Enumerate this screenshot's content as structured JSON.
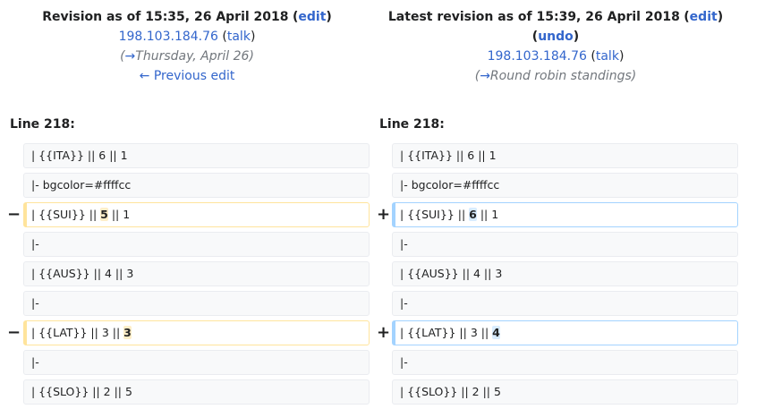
{
  "left_header": {
    "title_prefix": "Revision as of 15:35, 26 April 2018",
    "edit_label": "edit",
    "user": "198.103.184.76",
    "talk": "talk",
    "summary_arrow": "→",
    "summary": "Thursday, April 26",
    "prev_edit": "← Previous edit"
  },
  "right_header": {
    "title_prefix": "Latest revision as of 15:39, 26 April 2018",
    "edit_label": "edit",
    "undo_label": "undo",
    "user": "198.103.184.76",
    "talk": "talk",
    "summary_arrow": "→",
    "summary": "Round robin standings"
  },
  "left_line_label": "Line 218:",
  "right_line_label": "Line 218:",
  "rows": [
    {
      "type": "context",
      "left": "| {{ITA}} || 6 || 1",
      "right": "| {{ITA}} || 6 || 1"
    },
    {
      "type": "context",
      "left": "|- bgcolor=#ffffcc",
      "right": "|- bgcolor=#ffffcc"
    },
    {
      "type": "change",
      "left_pre": "| {{SUI}} || ",
      "left_hl": "5",
      "left_post": " || 1",
      "right_pre": "| {{SUI}} || ",
      "right_hl": "6",
      "right_post": " || 1"
    },
    {
      "type": "context",
      "left": "|-",
      "right": "|-"
    },
    {
      "type": "context",
      "left": "| {{AUS}} || 4 || 3",
      "right": "| {{AUS}} || 4 || 3"
    },
    {
      "type": "context",
      "left": "|-",
      "right": "|-"
    },
    {
      "type": "change",
      "left_pre": "| {{LAT}} || 3 || ",
      "left_hl": "3",
      "left_post": "",
      "right_pre": "| {{LAT}} || 3 || ",
      "right_hl": "4",
      "right_post": ""
    },
    {
      "type": "context",
      "left": "|-",
      "right": "|-"
    },
    {
      "type": "context",
      "left": "| {{SLO}} || 2 || 5",
      "right": "| {{SLO}} || 2 || 5"
    }
  ],
  "minus_marker": "−",
  "plus_marker": "+"
}
